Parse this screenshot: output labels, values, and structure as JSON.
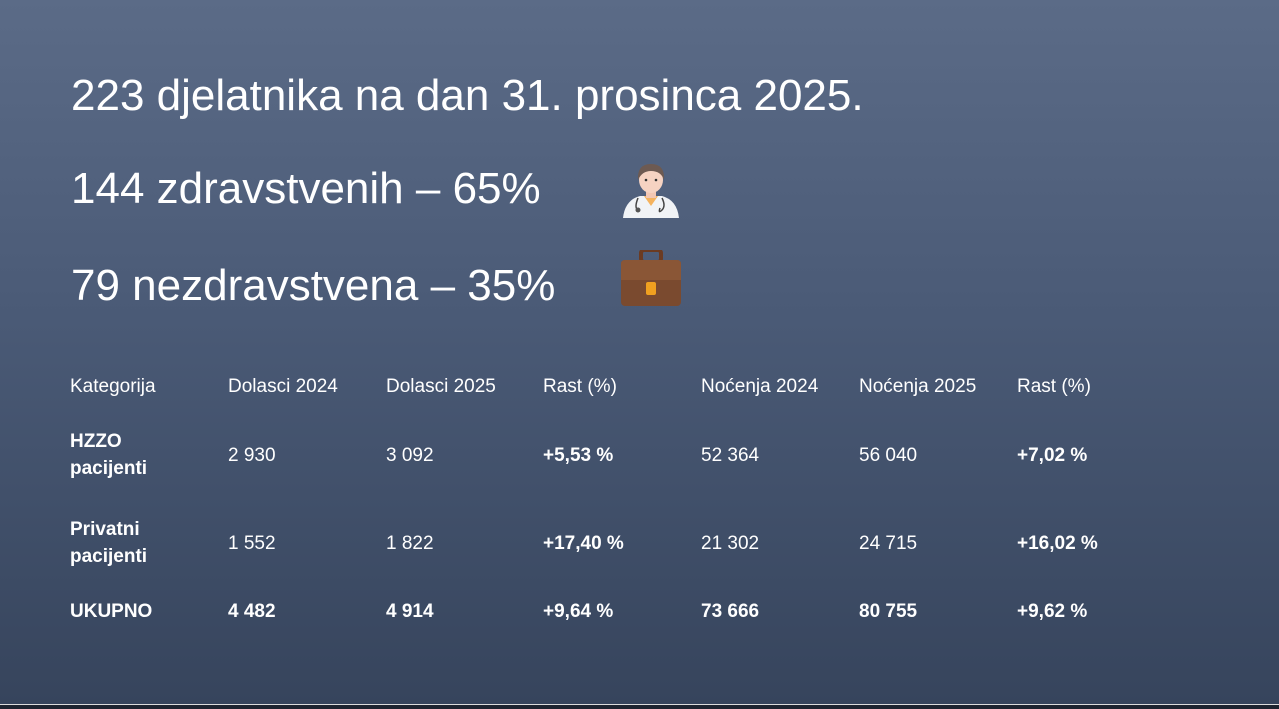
{
  "headlines": {
    "total": "223 djelatnika na dan 31. prosinca 2025.",
    "health": "144 zdravstvenih – 65%",
    "nonhealth": "79 nezdravstvena – 35%"
  },
  "icons": {
    "health": "doctor-icon",
    "nonhealth": "briefcase-icon"
  },
  "table": {
    "headers": [
      "Kategorija",
      "Dolasci 2024",
      "Dolasci 2025",
      "Rast (%)",
      "Noćenja 2024",
      "Noćenja 2025",
      "Rast (%)"
    ],
    "rows": [
      {
        "cells": [
          "HZZO\npacijenti",
          "2 930",
          "3 092",
          "+5,53 %",
          "52 364",
          "56 040",
          "+7,02 %"
        ]
      },
      {
        "cells": [
          "Privatni\npacijenti",
          "1 552",
          "1 822",
          "+17,40 %",
          "21 302",
          "24 715",
          "+16,02 %"
        ]
      },
      {
        "cells": [
          "UKUPNO",
          "4 482",
          "4 914",
          "+9,64 %",
          "73 666",
          "80 755",
          "+9,62 %"
        ]
      }
    ]
  }
}
